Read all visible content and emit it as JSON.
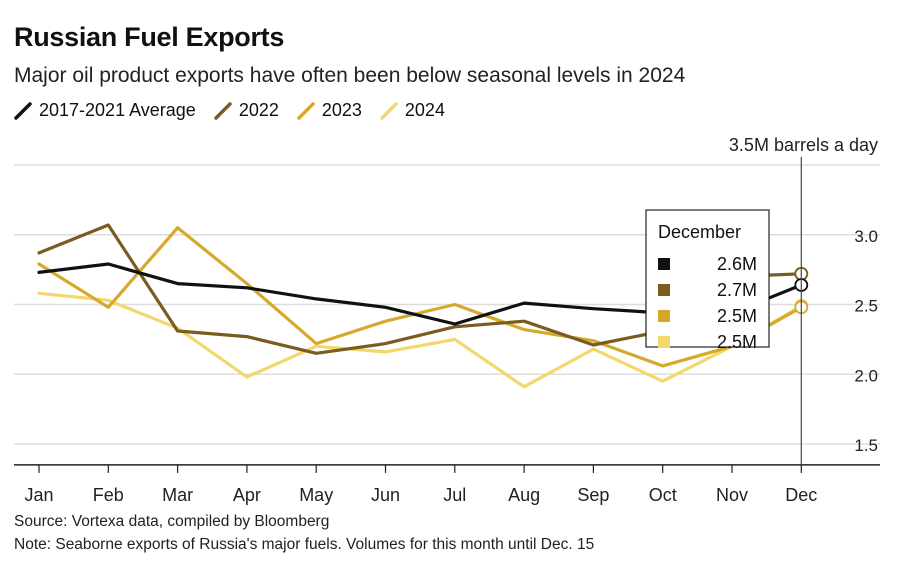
{
  "header": {
    "title": "Russian Fuel Exports",
    "subtitle": "Major oil product exports have often been below seasonal levels in 2024"
  },
  "footer": {
    "source": "Source: Vortexa data, compiled by Bloomberg",
    "note": "Note: Seaborne exports of Russia's major fuels. Volumes for this month until Dec. 15"
  },
  "chart_data": {
    "type": "line",
    "categories": [
      "Jan",
      "Feb",
      "Mar",
      "Apr",
      "May",
      "Jun",
      "Jul",
      "Aug",
      "Sep",
      "Oct",
      "Nov",
      "Dec"
    ],
    "ylim": [
      1.35,
      3.5
    ],
    "yticks": [
      1.5,
      2.0,
      2.5,
      3.0
    ],
    "ytick_labels": [
      "1.5",
      "2.0",
      "2.5",
      "3.0"
    ],
    "unit_label": "3.5M barrels a day",
    "grid": true,
    "legend_placement": "top-left",
    "series": [
      {
        "name": "2017-2021 Average",
        "color": "#111111",
        "values": [
          2.73,
          2.79,
          2.65,
          2.62,
          2.54,
          2.48,
          2.36,
          2.51,
          2.47,
          2.44,
          2.44,
          2.64
        ]
      },
      {
        "name": "2022",
        "color": "#7a5c1e",
        "values": [
          2.87,
          3.07,
          2.31,
          2.27,
          2.15,
          2.22,
          2.34,
          2.38,
          2.21,
          2.31,
          2.7,
          2.72
        ]
      },
      {
        "name": "2023",
        "color": "#d6a92b",
        "values": [
          2.79,
          2.48,
          3.05,
          2.65,
          2.22,
          2.38,
          2.5,
          2.32,
          2.24,
          2.06,
          2.2,
          2.48
        ]
      },
      {
        "name": "2024",
        "color": "#f3d76b",
        "values": [
          2.58,
          2.53,
          2.33,
          1.98,
          2.2,
          2.16,
          2.25,
          1.91,
          2.18,
          1.95,
          2.2,
          2.49
        ]
      }
    ],
    "tooltip": {
      "title": "December",
      "entries": [
        {
          "series": "2017-2021 Average",
          "label": "2.6M",
          "color": "#111111"
        },
        {
          "series": "2022",
          "label": "2.7M",
          "color": "#7a5c1e"
        },
        {
          "series": "2023",
          "label": "2.5M",
          "color": "#d6a92b"
        },
        {
          "series": "2024",
          "label": "2.5M",
          "color": "#f3d76b"
        }
      ]
    }
  }
}
